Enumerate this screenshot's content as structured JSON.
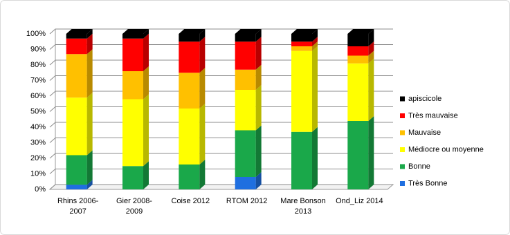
{
  "chart_data": {
    "type": "stacked-bar-3d",
    "categories": [
      "Rhins 2006-2007",
      "Gier 2008-2009",
      "Coise 2012",
      "RTOM 2012",
      "Mare Bonson 2013",
      "Ond_Liz 2014"
    ],
    "series": [
      {
        "name": "Très Bonne",
        "color": "#1f6fe0",
        "values": [
          3,
          0,
          0,
          8,
          0,
          0
        ]
      },
      {
        "name": "Bonne",
        "color": "#1aa84a",
        "values": [
          19,
          15,
          16,
          30,
          37,
          44
        ]
      },
      {
        "name": "Médiocre ou moyenne",
        "color": "#ffff00",
        "values": [
          37,
          43,
          36,
          26,
          52,
          37
        ]
      },
      {
        "name": "Mauvaise",
        "color": "#ffc000",
        "values": [
          28,
          18,
          23,
          13,
          3,
          5
        ]
      },
      {
        "name": "Très mauvaise",
        "color": "#ff0000",
        "values": [
          10,
          21,
          20,
          18,
          3,
          6
        ]
      },
      {
        "name": "apiscicole",
        "color": "#000000",
        "values": [
          3,
          3,
          5,
          5,
          5,
          8
        ]
      }
    ],
    "ylim": [
      0,
      100
    ],
    "yticks": [
      {
        "value": 0,
        "label": "0%"
      },
      {
        "value": 10,
        "label": "10%"
      },
      {
        "value": 20,
        "label": "20%"
      },
      {
        "value": 30,
        "label": "30%"
      },
      {
        "value": 40,
        "label": "40%"
      },
      {
        "value": 50,
        "label": "50%"
      },
      {
        "value": 60,
        "label": "60%"
      },
      {
        "value": 70,
        "label": "70%"
      },
      {
        "value": 80,
        "label": "80%"
      },
      {
        "value": 90,
        "label": "90%"
      },
      {
        "value": 100,
        "label": "100%"
      }
    ],
    "grid": true,
    "legend": "right"
  }
}
